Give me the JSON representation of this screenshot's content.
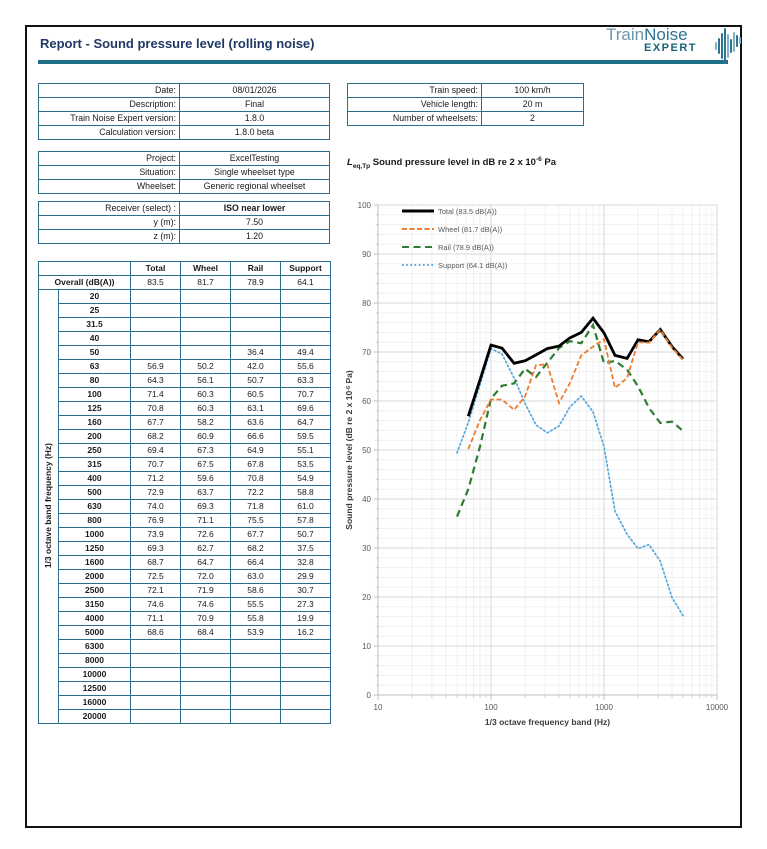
{
  "colors": {
    "title": "#1f3864",
    "rule": "#1b6e86",
    "table_border": "#2c6c8c",
    "logo_light": "#6b97ad",
    "logo_dark": "#2e7394",
    "logo_expert": "#1d6079",
    "total_line": "#000000",
    "wheel_line": "#ED7D31",
    "rail_line": "#2E7D32",
    "support_line": "#56A8DC"
  },
  "page": {
    "title": "Report - Sound pressure level (rolling noise)"
  },
  "logo": {
    "word1": "Train",
    "word2": "Noise",
    "word3": "EXPERT"
  },
  "info_table": {
    "sections": [
      {
        "rows": [
          [
            "Date:",
            "08/01/2026"
          ],
          [
            "Description:",
            "Final"
          ],
          [
            "Train Noise Expert version:",
            "1.8.0"
          ],
          [
            "Calculation version:",
            "1.8.0 beta"
          ]
        ]
      },
      {
        "rows": [
          [
            "Project:",
            "ExcelTesting"
          ],
          [
            "Situation:",
            "Single wheelset type"
          ],
          [
            "Wheelset:",
            "Generic regional wheelset"
          ]
        ]
      }
    ]
  },
  "train_table": {
    "rows": [
      [
        "Train speed:",
        "100 km/h"
      ],
      [
        "Vehicle length:",
        "20 m"
      ],
      [
        "Number of wheelsets:",
        "2"
      ]
    ]
  },
  "receiver_table": {
    "rows": [
      [
        "Receiver (select) :",
        "ISO near lower"
      ],
      [
        "y (m):",
        "7.50"
      ],
      [
        "z (m):",
        "1.20"
      ]
    ],
    "bold_value_rows": [
      0
    ],
    "select_rows": [
      0
    ]
  },
  "caption": {
    "symbol": "L",
    "subscript": "eq,Tp",
    "text": " Sound pressure level in dB re 2 x 10",
    "exponent": "-6",
    "suffix": " Pa"
  },
  "spectrum_table": {
    "axis_label": "1/3 octave band frequency (Hz)",
    "columns": [
      "Total",
      "Wheel",
      "Rail",
      "Support"
    ],
    "overall_label": "Overall (dB(A))",
    "overall_values": [
      "83.5",
      "81.7",
      "78.9",
      "64.1"
    ],
    "rows": [
      [
        "20",
        "",
        "",
        "",
        ""
      ],
      [
        "25",
        "",
        "",
        "",
        ""
      ],
      [
        "31.5",
        "",
        "",
        "",
        ""
      ],
      [
        "40",
        "",
        "",
        "",
        ""
      ],
      [
        "50",
        "",
        "",
        "36.4",
        "49.4"
      ],
      [
        "63",
        "56.9",
        "50.2",
        "42.0",
        "55.6"
      ],
      [
        "80",
        "64.3",
        "56.1",
        "50.7",
        "63.3"
      ],
      [
        "100",
        "71.4",
        "60.3",
        "60.5",
        "70.7"
      ],
      [
        "125",
        "70.8",
        "60.3",
        "63.1",
        "69.6"
      ],
      [
        "160",
        "67.7",
        "58.2",
        "63.6",
        "64.7"
      ],
      [
        "200",
        "68.2",
        "60.9",
        "66.6",
        "59.5"
      ],
      [
        "250",
        "69.4",
        "67.3",
        "64.9",
        "55.1"
      ],
      [
        "315",
        "70.7",
        "67.5",
        "67.8",
        "53.5"
      ],
      [
        "400",
        "71.2",
        "59.6",
        "70.8",
        "54.9"
      ],
      [
        "500",
        "72.9",
        "63.7",
        "72.2",
        "58.8"
      ],
      [
        "630",
        "74.0",
        "69.3",
        "71.8",
        "61.0"
      ],
      [
        "800",
        "76.9",
        "71.1",
        "75.5",
        "57.8"
      ],
      [
        "1000",
        "73.9",
        "72.6",
        "67.7",
        "50.7"
      ],
      [
        "1250",
        "69.3",
        "62.7",
        "68.2",
        "37.5"
      ],
      [
        "1600",
        "68.7",
        "64.7",
        "66.4",
        "32.8"
      ],
      [
        "2000",
        "72.5",
        "72.0",
        "63.0",
        "29.9"
      ],
      [
        "2500",
        "72.1",
        "71.9",
        "58.6",
        "30.7"
      ],
      [
        "3150",
        "74.6",
        "74.6",
        "55.5",
        "27.3"
      ],
      [
        "4000",
        "71.1",
        "70.9",
        "55.8",
        "19.9"
      ],
      [
        "5000",
        "68.6",
        "68.4",
        "53.9",
        "16.2"
      ],
      [
        "6300",
        "",
        "",
        "",
        ""
      ],
      [
        "8000",
        "",
        "",
        "",
        ""
      ],
      [
        "10000",
        "",
        "",
        "",
        ""
      ],
      [
        "12500",
        "",
        "",
        "",
        ""
      ],
      [
        "16000",
        "",
        "",
        "",
        ""
      ],
      [
        "20000",
        "",
        "",
        "",
        ""
      ]
    ]
  },
  "chart_data": {
    "type": "line",
    "x_scale": "log",
    "xlim": [
      10,
      10000
    ],
    "ylim": [
      0,
      100
    ],
    "y_major_step": 10,
    "y_minor_step": 2,
    "grid": true,
    "xlabel": "1/3 octave frequency band (Hz)",
    "ylabel_text": "Sound pressure level (dB re 2 x 10",
    "ylabel_exponent": "-6",
    "ylabel_suffix": " Pa)",
    "legend_position": "top-left-inside",
    "draw_order": [
      3,
      2,
      0,
      1
    ],
    "series": [
      {
        "name": "Total",
        "legend": "Total (83.5 dB(A))",
        "color": "#000000",
        "style": "solid",
        "x": [
          63,
          80,
          100,
          125,
          160,
          200,
          250,
          315,
          400,
          500,
          630,
          800,
          1000,
          1250,
          1600,
          2000,
          2500,
          3150,
          4000,
          5000
        ],
        "y": [
          56.9,
          64.3,
          71.4,
          70.8,
          67.7,
          68.2,
          69.4,
          70.7,
          71.2,
          72.9,
          74.0,
          76.9,
          73.9,
          69.3,
          68.7,
          72.5,
          72.1,
          74.6,
          71.1,
          68.6
        ]
      },
      {
        "name": "Wheel",
        "legend": "Wheel (81.7 dB(A))",
        "color": "#ED7D31",
        "style": "dashed",
        "x": [
          63,
          80,
          100,
          125,
          160,
          200,
          250,
          315,
          400,
          500,
          630,
          800,
          1000,
          1250,
          1600,
          2000,
          2500,
          3150,
          4000,
          5000
        ],
        "y": [
          50.2,
          56.1,
          60.3,
          60.3,
          58.2,
          60.9,
          67.3,
          67.5,
          59.6,
          63.7,
          69.3,
          71.1,
          72.6,
          62.7,
          64.7,
          72.0,
          71.9,
          74.6,
          70.9,
          68.4
        ]
      },
      {
        "name": "Rail",
        "legend": "Rail (78.9 dB(A))",
        "color": "#2E7D32",
        "style": "long-dash",
        "x": [
          50,
          63,
          80,
          100,
          125,
          160,
          200,
          250,
          315,
          400,
          500,
          630,
          800,
          1000,
          1250,
          1600,
          2000,
          2500,
          3150,
          4000,
          5000
        ],
        "y": [
          36.4,
          42.0,
          50.7,
          60.5,
          63.1,
          63.6,
          66.6,
          64.9,
          67.8,
          70.8,
          72.2,
          71.8,
          75.5,
          67.7,
          68.2,
          66.4,
          63.0,
          58.6,
          55.5,
          55.8,
          53.9
        ]
      },
      {
        "name": "Support",
        "legend": "Support (64.1 dB(A))",
        "color": "#56A8DC",
        "style": "dotted",
        "x": [
          50,
          63,
          80,
          100,
          125,
          160,
          200,
          250,
          315,
          400,
          500,
          630,
          800,
          1000,
          1250,
          1600,
          2000,
          2500,
          3150,
          4000,
          5000
        ],
        "y": [
          49.4,
          55.6,
          63.3,
          70.7,
          69.6,
          64.7,
          59.5,
          55.1,
          53.5,
          54.9,
          58.8,
          61.0,
          57.8,
          50.7,
          37.5,
          32.8,
          29.9,
          30.7,
          27.3,
          19.9,
          16.2
        ]
      }
    ]
  }
}
